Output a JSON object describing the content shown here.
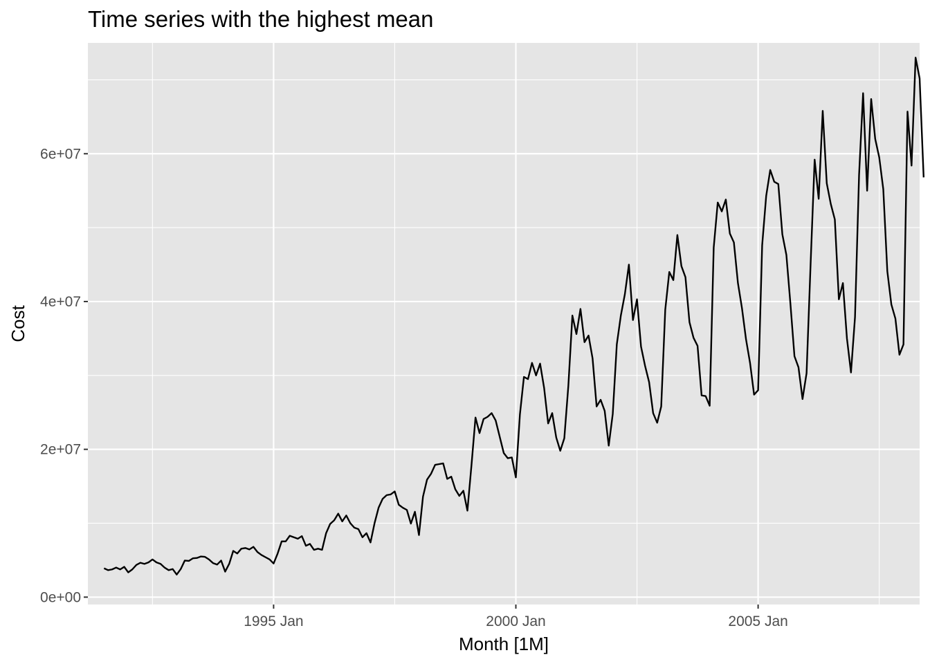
{
  "chart_data": {
    "type": "line",
    "title": "Time series with the highest mean",
    "xlabel": "Month [1M]",
    "ylabel": "Cost",
    "x_start": "1991 Jul",
    "x_step": "1 month",
    "x_range": [
      "1991 Mar",
      "2008 May"
    ],
    "ylim": [
      -1000000,
      75000000
    ],
    "x_ticks": [
      {
        "date": "1995 Jan",
        "label": "1995 Jan"
      },
      {
        "date": "2000 Jan",
        "label": "2000 Jan"
      },
      {
        "date": "2005 Jan",
        "label": "2005 Jan"
      }
    ],
    "x_minor_ticks": [
      "1992 Jul",
      "1997 Jul",
      "2002 Jul",
      "2007 Jul"
    ],
    "y_ticks": [
      {
        "value": 0,
        "label": "0e+00"
      },
      {
        "value": 20000000,
        "label": "2e+07"
      },
      {
        "value": 40000000,
        "label": "4e+07"
      },
      {
        "value": 60000000,
        "label": "6e+07"
      }
    ],
    "y_minor_ticks": [
      10000000,
      30000000,
      50000000,
      70000000
    ],
    "grid": true,
    "background": "#e5e5e5",
    "line_color": "#000000",
    "series": [
      {
        "values": [
          3900000,
          3650000,
          3750000,
          4000000,
          3750000,
          4100000,
          3350000,
          3750000,
          4350000,
          4650000,
          4500000,
          4700000,
          5100000,
          4700000,
          4500000,
          4000000,
          3650000,
          3800000,
          3050000,
          3800000,
          4950000,
          4900000,
          5250000,
          5300000,
          5500000,
          5450000,
          5100000,
          4600000,
          4400000,
          4950000,
          3450000,
          4500000,
          6250000,
          5900000,
          6550000,
          6650000,
          6450000,
          6800000,
          6100000,
          5700000,
          5400000,
          5100000,
          4550000,
          5900000,
          7550000,
          7550000,
          8300000,
          8100000,
          7900000,
          8250000,
          6950000,
          7200000,
          6400000,
          6550000,
          6400000,
          8650000,
          9900000,
          10400000,
          11300000,
          10250000,
          11050000,
          10000000,
          9400000,
          9200000,
          8100000,
          8650000,
          7400000,
          10000000,
          12100000,
          13300000,
          13800000,
          13900000,
          14300000,
          12500000,
          12100000,
          11800000,
          9950000,
          11550000,
          8400000,
          13600000,
          15900000,
          16700000,
          17900000,
          18000000,
          18100000,
          16000000,
          16300000,
          14600000,
          13700000,
          14400000,
          11700000,
          17800000,
          24300000,
          22200000,
          24100000,
          24400000,
          24900000,
          23900000,
          21700000,
          19500000,
          18800000,
          18900000,
          16200000,
          24700000,
          29800000,
          29500000,
          31700000,
          30000000,
          31600000,
          28300000,
          23500000,
          24900000,
          21600000,
          19800000,
          21500000,
          28600000,
          38100000,
          35600000,
          39000000,
          34500000,
          35400000,
          32300000,
          25800000,
          26700000,
          25200000,
          20500000,
          24800000,
          34200000,
          38100000,
          41000000,
          45000000,
          37500000,
          40300000,
          33900000,
          31300000,
          29100000,
          24900000,
          23600000,
          25800000,
          38900000,
          44000000,
          42900000,
          49000000,
          44800000,
          43300000,
          37200000,
          35100000,
          34000000,
          27300000,
          27200000,
          25900000,
          47300000,
          53400000,
          52200000,
          53800000,
          49200000,
          48000000,
          42500000,
          39100000,
          34900000,
          31700000,
          27400000,
          28000000,
          47600000,
          54300000,
          57800000,
          56200000,
          55900000,
          49100000,
          46300000,
          39700000,
          32600000,
          31100000,
          26800000,
          30300000,
          45100000,
          59200000,
          53900000,
          65800000,
          56000000,
          53200000,
          51100000,
          40300000,
          42500000,
          35000000,
          30400000,
          37900000,
          57100000,
          68200000,
          55000000,
          67400000,
          62000000,
          59500000,
          55200000,
          44100000,
          39600000,
          37700000,
          32800000,
          34200000,
          65700000,
          58400000,
          73000000,
          70200000,
          56800000
        ]
      }
    ]
  }
}
